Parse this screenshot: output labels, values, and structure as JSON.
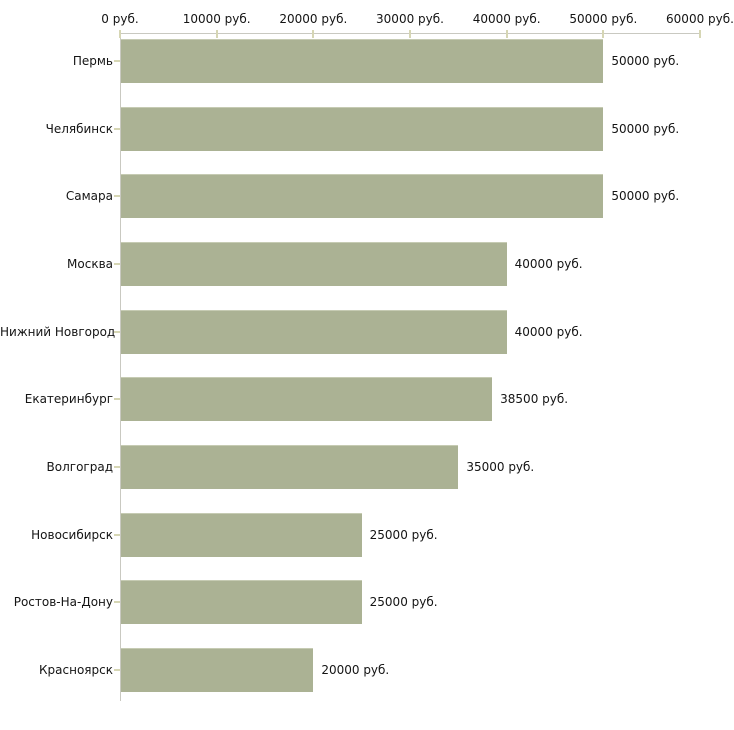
{
  "chart_data": {
    "type": "bar",
    "orientation": "horizontal",
    "title": "",
    "xlabel": "",
    "ylabel": "",
    "unit_suffix": " руб.",
    "xlim": [
      0,
      60000
    ],
    "x_tick_values": [
      0,
      10000,
      20000,
      30000,
      40000,
      50000,
      60000
    ],
    "x_tick_labels": [
      "0 руб.",
      "10000 руб.",
      "20000 руб.",
      "30000 руб.",
      "40000 руб.",
      "50000 руб.",
      "60000 руб."
    ],
    "categories": [
      "Пермь",
      "Челябинск",
      "Самара",
      "Москва",
      "Нижний Новгород",
      "Екатеринбург",
      "Волгоград",
      "Новосибирск",
      "Ростов-На-Дону",
      "Красноярск"
    ],
    "values": [
      50000,
      50000,
      50000,
      40000,
      40000,
      38500,
      35000,
      25000,
      25000,
      20000
    ],
    "bar_labels": [
      "50000 руб.",
      "50000 руб.",
      "50000 руб.",
      "40000 руб.",
      "40000 руб.",
      "38500 руб.",
      "35000 руб.",
      "25000 руб.",
      "25000 руб.",
      "20000 руб."
    ],
    "grid": false,
    "legend": "none",
    "colors": {
      "bar": "#abb294",
      "bar_top_edge": "#c6cbb3",
      "axis_line": "#c9c9c1",
      "tick_mark": "#d6d6b4",
      "text": "#141414",
      "background": "#ffffff"
    }
  }
}
